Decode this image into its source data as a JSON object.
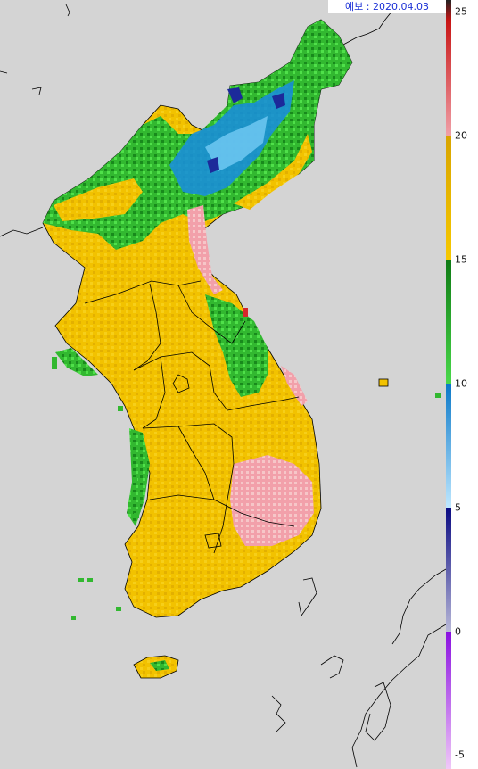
{
  "forecast_label": "예보 : 2020.04.03",
  "legend": {
    "ticks": [
      "25",
      "20",
      "15",
      "10",
      "5",
      "0",
      "-5"
    ],
    "bands": [
      {
        "from": 25,
        "to": 20,
        "colors": [
          "#222222",
          "#c81414",
          "#f0a0a8"
        ]
      },
      {
        "from": 20,
        "to": 15,
        "colors": [
          "#d8a400",
          "#f6c800"
        ]
      },
      {
        "from": 15,
        "to": 10,
        "colors": [
          "#0e7a14",
          "#49d84a"
        ]
      },
      {
        "from": 10,
        "to": 5,
        "colors": [
          "#0a78c8",
          "#bfe8ff"
        ]
      },
      {
        "from": 5,
        "to": 0,
        "colors": [
          "#0a0a82",
          "#b8b8d8"
        ]
      },
      {
        "from": 0,
        "to": -5,
        "colors": [
          "#8a10e0",
          "#f0c8f8"
        ]
      }
    ]
  },
  "colors": {
    "ocean": "#d4d4d4",
    "gold": "#f2c200",
    "gold_dark": "#d9a800",
    "green": "#2fb52c",
    "green_light": "#4fe04a",
    "blue": "#1a8fd8",
    "pink": "#f2a0aa",
    "red": "#d6262c"
  }
}
